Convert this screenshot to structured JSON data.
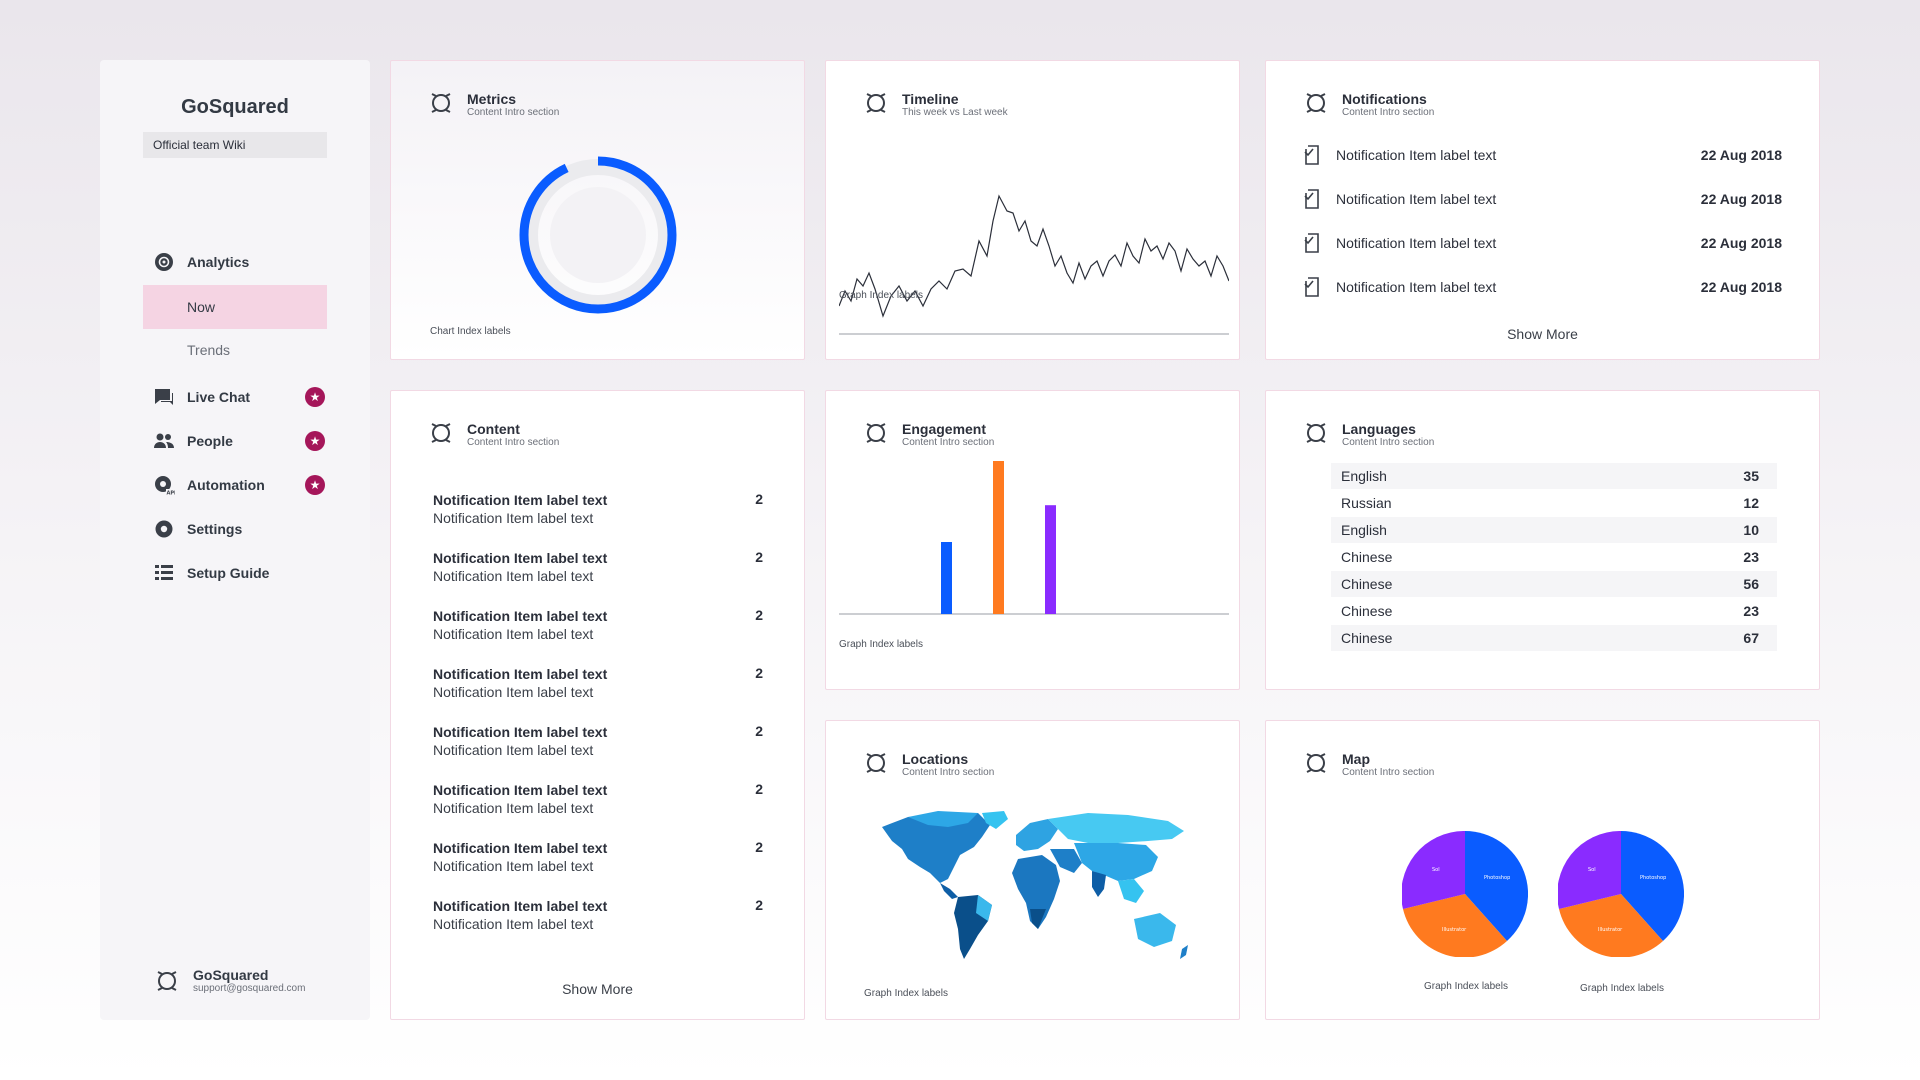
{
  "sidebar": {
    "brand": "GoSquared",
    "wiki": "Official team Wiki",
    "nav": [
      {
        "label": "Analytics",
        "icon": "analytics-gear-icon"
      },
      {
        "label": "Live Chat",
        "icon": "chat-icon",
        "badge": "★"
      },
      {
        "label": "People",
        "icon": "people-icon",
        "badge": "★"
      },
      {
        "label": "Automation",
        "icon": "automation-api-icon",
        "badge": "★"
      },
      {
        "label": "Settings",
        "icon": "settings-gear-icon"
      },
      {
        "label": "Setup Guide",
        "icon": "checklist-icon"
      }
    ],
    "sub": [
      "Now",
      "Trends"
    ],
    "footer": {
      "name": "GoSquared",
      "email": "support@gosquared.com"
    }
  },
  "metrics": {
    "title": "Metrics",
    "subtitle": "Content Intro section",
    "axis": "Chart Index labels",
    "progress": 0.93
  },
  "timeline": {
    "title": "Timeline",
    "subtitle": "This week vs Last week",
    "axis": "Graph Index labels"
  },
  "notifications": {
    "title": "Notifications",
    "subtitle": "Content Intro section",
    "items": [
      {
        "label": "Notification Item label text",
        "date": "22 Aug 2018"
      },
      {
        "label": "Notification Item label text",
        "date": "22 Aug 2018"
      },
      {
        "label": "Notification Item label text",
        "date": "22 Aug 2018"
      },
      {
        "label": "Notification Item label text",
        "date": "22 Aug 2018"
      }
    ],
    "more": "Show More"
  },
  "content": {
    "title": "Content",
    "subtitle": "Content Intro section",
    "items": [
      {
        "t1": "Notification Item label text",
        "t2": "Notification Item label text",
        "count": "2"
      },
      {
        "t1": "Notification Item label text",
        "t2": "Notification Item label text",
        "count": "2"
      },
      {
        "t1": "Notification Item label text",
        "t2": "Notification Item label text",
        "count": "2"
      },
      {
        "t1": "Notification Item label text",
        "t2": "Notification Item label text",
        "count": "2"
      },
      {
        "t1": "Notification Item label text",
        "t2": "Notification Item label text",
        "count": "2"
      },
      {
        "t1": "Notification Item label text",
        "t2": "Notification Item label text",
        "count": "2"
      },
      {
        "t1": "Notification Item label text",
        "t2": "Notification Item label text",
        "count": "2"
      },
      {
        "t1": "Notification Item label text",
        "t2": "Notification Item label text",
        "count": "2"
      }
    ],
    "more": "Show More"
  },
  "engagement": {
    "title": "Engagement",
    "subtitle": "Content Intro section",
    "axis": "Graph Index labels",
    "bars": [
      {
        "value": 45,
        "color": "#0a5cff"
      },
      {
        "value": 100,
        "color": "#ff7a1f"
      },
      {
        "value": 68,
        "color": "#8a2bff"
      }
    ]
  },
  "languages": {
    "title": "Languages",
    "subtitle": "Content Intro section",
    "rows": [
      {
        "name": "English",
        "value": "35"
      },
      {
        "name": "Russian",
        "value": "12"
      },
      {
        "name": "English",
        "value": "10"
      },
      {
        "name": "Chinese",
        "value": "23"
      },
      {
        "name": "Chinese",
        "value": "56"
      },
      {
        "name": "Chinese",
        "value": "23"
      },
      {
        "name": "Chinese",
        "value": "67"
      }
    ]
  },
  "locations": {
    "title": "Locations",
    "subtitle": "Content Intro section",
    "axis": "Graph Index labels"
  },
  "map": {
    "title": "Map",
    "subtitle": "Content Intro section",
    "pies": [
      {
        "axis": "Graph Index labels",
        "labels": [
          "Photoshop",
          "Illustrator",
          "Sol"
        ]
      },
      {
        "axis": "Graph Index labels",
        "labels": [
          "Photoshop",
          "Illustrator",
          "Sol"
        ]
      }
    ]
  },
  "colors": {
    "accent": "#a5165a",
    "active_bg": "#f5d4e3",
    "blue": "#0a5cff",
    "orange": "#ff7a1f",
    "purple": "#8a2bff"
  }
}
